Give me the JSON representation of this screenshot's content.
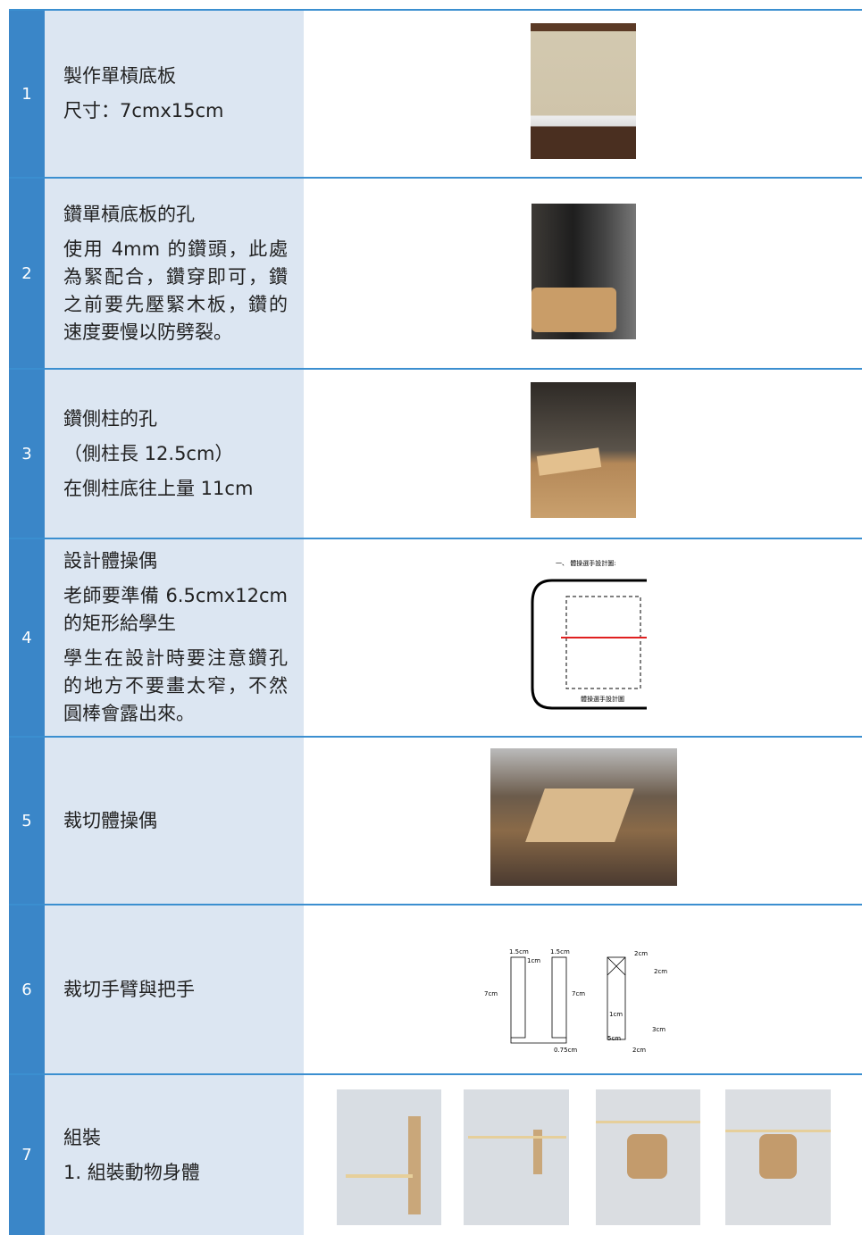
{
  "rows": [
    {
      "number": "1",
      "lines": [
        "製作單槓底板",
        "尺寸：7cmx15cm"
      ]
    },
    {
      "number": "2",
      "lines": [
        "鑽單槓底板的孔",
        "使用 4mm 的鑽頭，此處為緊配合，鑽穿即可，鑽之前要先壓緊木板，鑽的速度要慢以防劈裂。"
      ]
    },
    {
      "number": "3",
      "lines": [
        "鑽側柱的孔",
        "（側柱長 12.5cm）",
        "在側柱底往上量 11cm"
      ]
    },
    {
      "number": "4",
      "lines": [
        "設計體操偶",
        "老師要準備 6.5cmx12cm 的矩形給學生",
        "學生在設計時要注意鑽孔的地方不要畫太窄，不然圓棒會露出來。"
      ]
    },
    {
      "number": "5",
      "lines": [
        "裁切體操偶"
      ]
    },
    {
      "number": "6",
      "lines": [
        "裁切手臂與把手"
      ]
    },
    {
      "number": "7",
      "lines": [
        "組裝",
        "1. 組裝動物身體"
      ]
    }
  ],
  "figure4": {
    "heading": "一、 體操選手設計圖:",
    "caption": "體操選手設計圖"
  },
  "figure6": {
    "labels": [
      "1.5cm",
      "1cm",
      "1.5cm",
      "7cm",
      "7cm",
      "0.75cm",
      "2cm",
      "2cm",
      "1cm",
      "3cm",
      "5cm",
      "2cm"
    ]
  }
}
